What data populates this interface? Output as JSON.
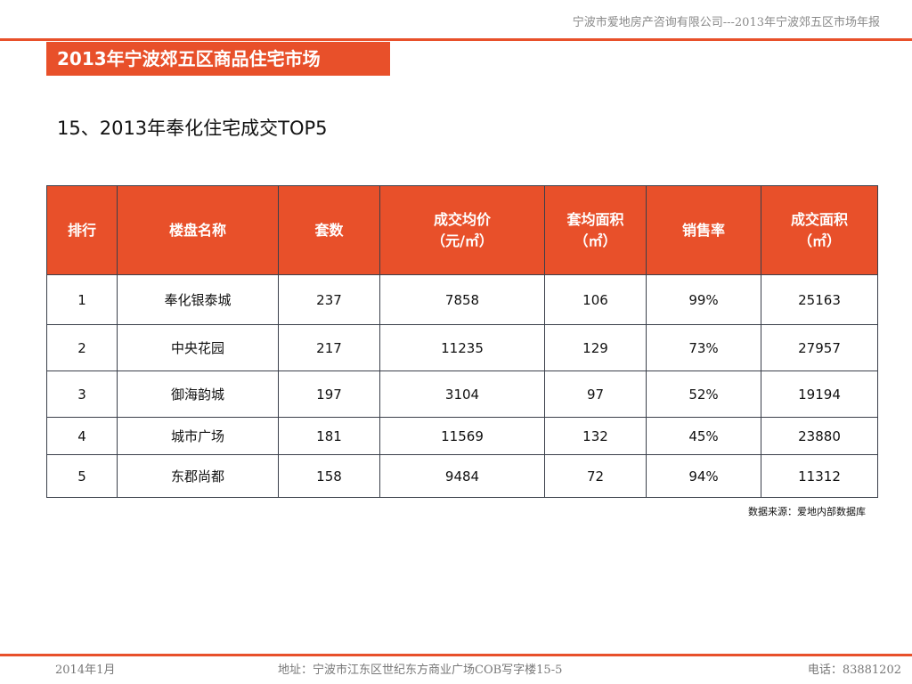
{
  "header": {
    "company": "宁波市爱地房产咨询有限公司---2013年宁波郊五区市场年报"
  },
  "banner": {
    "title": "2013年宁波郊五区商品住宅市场"
  },
  "section": {
    "subtitle": "15、2013年奉化住宅成交TOP5"
  },
  "table": {
    "headers": [
      {
        "line1": "排行",
        "line2": ""
      },
      {
        "line1": "楼盘名称",
        "line2": ""
      },
      {
        "line1": "套数",
        "line2": ""
      },
      {
        "line1": "成交均价",
        "line2": "（元/㎡）"
      },
      {
        "line1": "套均面积",
        "line2": "（㎡）"
      },
      {
        "line1": "销售率",
        "line2": ""
      },
      {
        "line1": "成交面积",
        "line2": "（㎡）"
      }
    ],
    "rows": [
      [
        "1",
        "奉化银泰城",
        "237",
        "7858",
        "106",
        "99%",
        "25163"
      ],
      [
        "2",
        "中央花园",
        "217",
        "11235",
        "129",
        "73%",
        "27957"
      ],
      [
        "3",
        "御海韵城",
        "197",
        "3104",
        "97",
        "52%",
        "19194"
      ],
      [
        "4",
        "城市广场",
        "181",
        "11569",
        "132",
        "45%",
        "23880"
      ],
      [
        "5",
        "东郡尚都",
        "158",
        "9484",
        "72",
        "94%",
        "11312"
      ]
    ]
  },
  "source": {
    "label": "数据来源：爱地内部数据库"
  },
  "footer": {
    "date": "2014年1月",
    "address": "地址：宁波市江东区世纪东方商业广场COB写字楼15-5",
    "phone": "电话：83881202"
  },
  "colors": {
    "accent": "#e8502a",
    "border": "#3a3f4a"
  }
}
